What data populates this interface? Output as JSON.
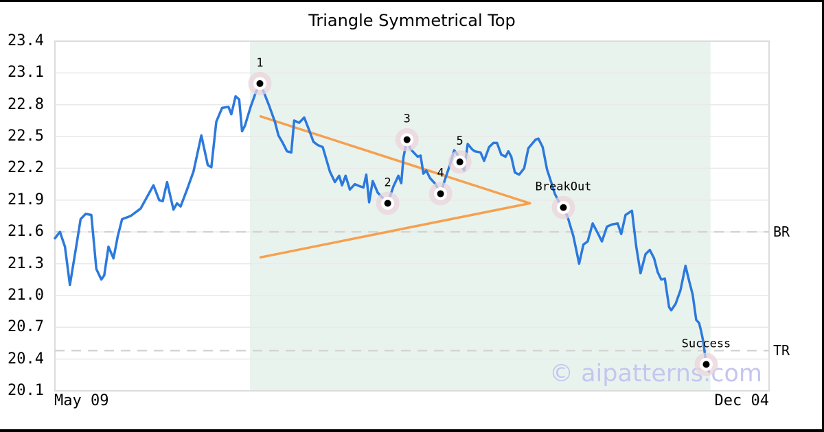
{
  "chart_data": {
    "type": "line",
    "title": "Triangle Symmetrical Top",
    "watermark": "© aipatterns.com",
    "xlabel": "",
    "ylabel": "",
    "x_tick_labels": [
      "May 09",
      "Dec 04"
    ],
    "y_ticks": [
      23.4,
      23.1,
      22.8,
      22.5,
      22.2,
      21.9,
      21.6,
      21.3,
      21.0,
      20.7,
      20.4,
      20.1
    ],
    "ylim": [
      20.1,
      23.4
    ],
    "xlim": [
      0,
      1
    ],
    "grid": "horizontal-only",
    "legend": "none",
    "series": [
      {
        "name": "price",
        "color": "#2b79dd",
        "points": [
          [
            0.0,
            21.54
          ],
          [
            0.007,
            21.6
          ],
          [
            0.014,
            21.46
          ],
          [
            0.021,
            21.1
          ],
          [
            0.029,
            21.43
          ],
          [
            0.036,
            21.72
          ],
          [
            0.043,
            21.77
          ],
          [
            0.051,
            21.76
          ],
          [
            0.058,
            21.25
          ],
          [
            0.065,
            21.15
          ],
          [
            0.069,
            21.19
          ],
          [
            0.075,
            21.46
          ],
          [
            0.082,
            21.35
          ],
          [
            0.088,
            21.56
          ],
          [
            0.094,
            21.72
          ],
          [
            0.106,
            21.75
          ],
          [
            0.12,
            21.82
          ],
          [
            0.138,
            22.04
          ],
          [
            0.146,
            21.9
          ],
          [
            0.151,
            21.89
          ],
          [
            0.157,
            22.07
          ],
          [
            0.166,
            21.81
          ],
          [
            0.171,
            21.87
          ],
          [
            0.176,
            21.84
          ],
          [
            0.185,
            22.0
          ],
          [
            0.194,
            22.17
          ],
          [
            0.205,
            22.51
          ],
          [
            0.214,
            22.23
          ],
          [
            0.219,
            22.21
          ],
          [
            0.226,
            22.64
          ],
          [
            0.234,
            22.77
          ],
          [
            0.243,
            22.78
          ],
          [
            0.247,
            22.71
          ],
          [
            0.253,
            22.88
          ],
          [
            0.258,
            22.85
          ],
          [
            0.262,
            22.55
          ],
          [
            0.266,
            22.6
          ],
          [
            0.274,
            22.78
          ],
          [
            0.281,
            22.91
          ],
          [
            0.287,
            23.0
          ],
          [
            0.293,
            22.91
          ],
          [
            0.3,
            22.79
          ],
          [
            0.308,
            22.64
          ],
          [
            0.313,
            22.51
          ],
          [
            0.319,
            22.44
          ],
          [
            0.325,
            22.36
          ],
          [
            0.331,
            22.35
          ],
          [
            0.335,
            22.65
          ],
          [
            0.342,
            22.63
          ],
          [
            0.349,
            22.68
          ],
          [
            0.356,
            22.56
          ],
          [
            0.362,
            22.45
          ],
          [
            0.368,
            22.42
          ],
          [
            0.375,
            22.4
          ],
          [
            0.385,
            22.17
          ],
          [
            0.392,
            22.07
          ],
          [
            0.398,
            22.13
          ],
          [
            0.402,
            22.04
          ],
          [
            0.407,
            22.13
          ],
          [
            0.413,
            22.0
          ],
          [
            0.42,
            22.05
          ],
          [
            0.427,
            22.03
          ],
          [
            0.432,
            22.02
          ],
          [
            0.436,
            22.14
          ],
          [
            0.44,
            21.88
          ],
          [
            0.445,
            22.08
          ],
          [
            0.452,
            21.97
          ],
          [
            0.459,
            21.92
          ],
          [
            0.466,
            21.87
          ],
          [
            0.474,
            22.03
          ],
          [
            0.481,
            22.13
          ],
          [
            0.485,
            22.06
          ],
          [
            0.488,
            22.3
          ],
          [
            0.493,
            22.47
          ],
          [
            0.498,
            22.38
          ],
          [
            0.508,
            22.31
          ],
          [
            0.512,
            22.32
          ],
          [
            0.516,
            22.15
          ],
          [
            0.52,
            22.18
          ],
          [
            0.525,
            22.11
          ],
          [
            0.533,
            22.05
          ],
          [
            0.54,
            21.96
          ],
          [
            0.546,
            22.09
          ],
          [
            0.553,
            22.23
          ],
          [
            0.559,
            22.37
          ],
          [
            0.563,
            22.34
          ],
          [
            0.567,
            22.26
          ],
          [
            0.573,
            22.18
          ],
          [
            0.578,
            22.43
          ],
          [
            0.584,
            22.38
          ],
          [
            0.588,
            22.36
          ],
          [
            0.596,
            22.35
          ],
          [
            0.601,
            22.27
          ],
          [
            0.608,
            22.4
          ],
          [
            0.614,
            22.44
          ],
          [
            0.619,
            22.44
          ],
          [
            0.625,
            22.33
          ],
          [
            0.631,
            22.31
          ],
          [
            0.635,
            22.36
          ],
          [
            0.639,
            22.31
          ],
          [
            0.644,
            22.16
          ],
          [
            0.65,
            22.14
          ],
          [
            0.657,
            22.2
          ],
          [
            0.663,
            22.39
          ],
          [
            0.673,
            22.47
          ],
          [
            0.677,
            22.48
          ],
          [
            0.683,
            22.4
          ],
          [
            0.689,
            22.19
          ],
          [
            0.693,
            22.11
          ],
          [
            0.7,
            21.96
          ],
          [
            0.706,
            21.88
          ],
          [
            0.712,
            21.83
          ],
          [
            0.718,
            21.74
          ],
          [
            0.726,
            21.56
          ],
          [
            0.734,
            21.3
          ],
          [
            0.74,
            21.48
          ],
          [
            0.746,
            21.51
          ],
          [
            0.753,
            21.68
          ],
          [
            0.76,
            21.59
          ],
          [
            0.766,
            21.51
          ],
          [
            0.773,
            21.65
          ],
          [
            0.78,
            21.67
          ],
          [
            0.788,
            21.68
          ],
          [
            0.793,
            21.58
          ],
          [
            0.799,
            21.76
          ],
          [
            0.808,
            21.8
          ],
          [
            0.814,
            21.46
          ],
          [
            0.82,
            21.21
          ],
          [
            0.827,
            21.39
          ],
          [
            0.833,
            21.43
          ],
          [
            0.839,
            21.35
          ],
          [
            0.844,
            21.22
          ],
          [
            0.849,
            21.15
          ],
          [
            0.854,
            21.16
          ],
          [
            0.86,
            20.89
          ],
          [
            0.863,
            20.86
          ],
          [
            0.869,
            20.92
          ],
          [
            0.876,
            21.05
          ],
          [
            0.883,
            21.28
          ],
          [
            0.888,
            21.14
          ],
          [
            0.893,
            21.01
          ],
          [
            0.898,
            20.77
          ],
          [
            0.902,
            20.74
          ],
          [
            0.905,
            20.66
          ],
          [
            0.908,
            20.56
          ],
          [
            0.912,
            20.35
          ],
          [
            0.916,
            20.28
          ]
        ]
      }
    ],
    "pattern": {
      "zone": {
        "from": 0.273,
        "to": 0.918
      },
      "upper_trendline": [
        [
          0.288,
          22.69
        ],
        [
          0.665,
          21.87
        ]
      ],
      "lower_trendline": [
        [
          0.288,
          21.36
        ],
        [
          0.665,
          21.87
        ]
      ]
    },
    "levels": [
      {
        "label": "BR",
        "value": 21.6,
        "style": "dashed"
      },
      {
        "label": "TR",
        "value": 20.48,
        "style": "dashed"
      }
    ],
    "markers": [
      {
        "label": "1",
        "x": 0.287,
        "y": 23.0
      },
      {
        "label": "2",
        "x": 0.466,
        "y": 21.87
      },
      {
        "label": "3",
        "x": 0.493,
        "y": 22.47
      },
      {
        "label": "4",
        "x": 0.54,
        "y": 21.96
      },
      {
        "label": "5",
        "x": 0.567,
        "y": 22.26
      },
      {
        "label": "BreakOut",
        "x": 0.712,
        "y": 21.83
      },
      {
        "label": "Success",
        "x": 0.912,
        "y": 20.35
      }
    ],
    "colors": {
      "line": "#2b79dd",
      "triangle": "#f6a04f",
      "zone": "#e9f3ee",
      "grid": "#e9e9e9",
      "plot_border": "#dcdcdc",
      "dashed_level": "#d4d4d4",
      "marker_halo": "#e9d4db",
      "watermark": "#c5c6ef",
      "text": "#000000",
      "background": "#ffffff",
      "frame": "#000000"
    }
  }
}
